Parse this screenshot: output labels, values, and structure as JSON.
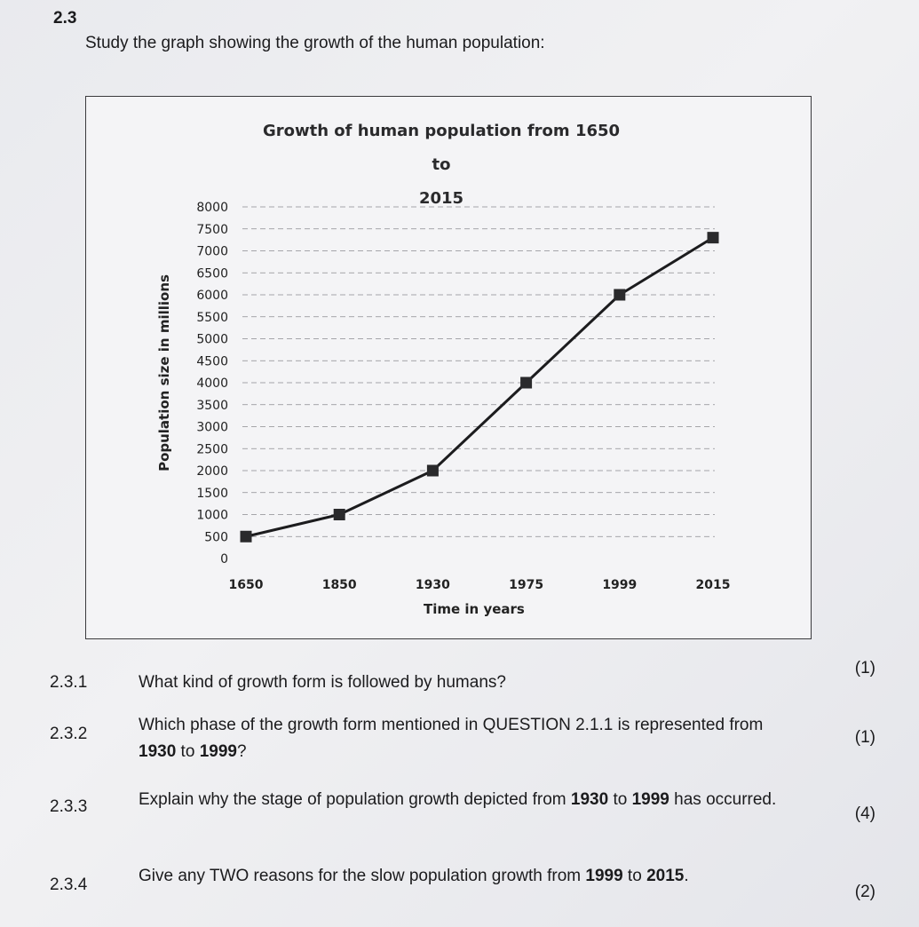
{
  "section_number": "2.3",
  "intro": "Study the graph showing the growth of the human population:",
  "chart_data": {
    "type": "line",
    "title_line1": "Growth of human population from 1650 to",
    "title_line2": "2015",
    "xlabel": "Time in years",
    "ylabel": "Population size in millions",
    "categories": [
      "1650",
      "1850",
      "1930",
      "1975",
      "1999",
      "2015"
    ],
    "values": [
      500,
      1000,
      2000,
      4000,
      6000,
      7300
    ],
    "y_ticks": [
      0,
      500,
      1000,
      1500,
      2000,
      2500,
      3000,
      3500,
      4000,
      4500,
      5000,
      5500,
      6000,
      6500,
      7000,
      7500,
      8000
    ],
    "ylim": [
      0,
      8000
    ],
    "grid": true,
    "marker": "square"
  },
  "questions": [
    {
      "num": "2.3.1",
      "text": "What kind of growth form is followed by humans?",
      "marks": "(1)"
    },
    {
      "num": "2.3.2",
      "text_a": "Which phase of the growth form mentioned in QUESTION 2.1.1 is represented from ",
      "bold_1": "1930",
      "text_b": " to ",
      "bold_2": "1999",
      "text_c": "?",
      "marks": "(1)"
    },
    {
      "num": "2.3.3",
      "text_a": "Explain why the stage of population growth depicted from ",
      "bold_1": "1930",
      "text_b": " to ",
      "bold_2": "1999",
      "text_c": " has occurred.",
      "marks": "(4)"
    },
    {
      "num": "2.3.4",
      "text_a": "Give any TWO reasons for the slow population growth from ",
      "bold_1": "1999",
      "text_b": " to ",
      "bold_2": "2015",
      "text_c": ".",
      "marks": "(2)"
    }
  ]
}
